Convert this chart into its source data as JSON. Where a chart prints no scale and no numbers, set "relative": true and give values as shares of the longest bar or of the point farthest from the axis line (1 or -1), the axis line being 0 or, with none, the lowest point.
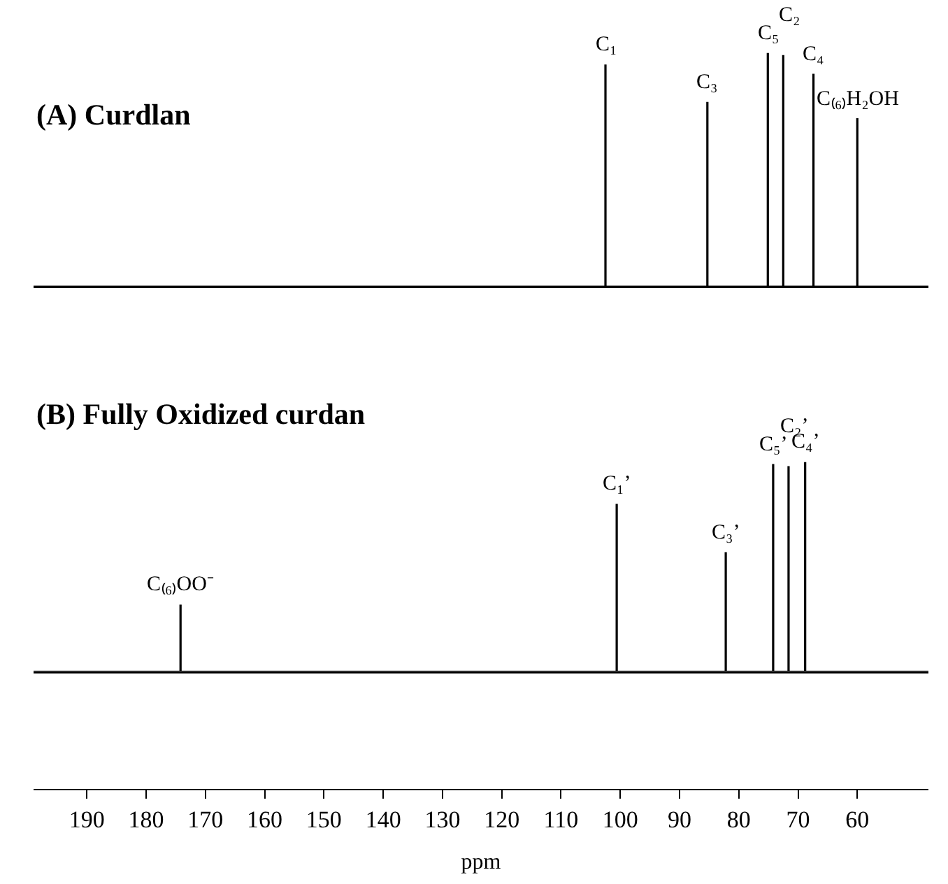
{
  "chart_data": [
    {
      "type": "line",
      "title": "(A) Curdlan",
      "relative": true,
      "tick_labels": false,
      "xlim": [
        199,
        48
      ],
      "series": [
        {
          "color": "#000000",
          "x": [
            199,
            102.5,
            102.5,
            102.5,
            85.3,
            85.3,
            85.3,
            75.1,
            75.1,
            75.1,
            72.5,
            72.5,
            72.5,
            67.4,
            67.4,
            67.4,
            60.0,
            60.0,
            60.0,
            48
          ],
          "values": [
            0,
            0,
            0.95,
            0,
            0,
            0.79,
            0,
            0,
            1,
            0,
            0,
            0.99,
            0,
            0,
            0.91,
            0,
            0,
            0.72,
            0,
            0
          ]
        }
      ],
      "annotations": [
        {
          "text": "C₁",
          "x": 102.5,
          "y": 0.95
        },
        {
          "text": "C₃",
          "x": 85.3,
          "y": 0.79
        },
        {
          "text": "C₅",
          "x": 75.1,
          "y": 1
        },
        {
          "text": "C₂",
          "x": 72.5,
          "y": 0.99
        },
        {
          "text": "C₄",
          "x": 67.4,
          "y": 0.91
        },
        {
          "text": "C₍₆₎H₂OH",
          "x": 60.0,
          "y": 0.72
        }
      ]
    },
    {
      "type": "line",
      "title": "(B) Fully Oxidized curdan",
      "relative": true,
      "xlabel": "ppm",
      "xlim": [
        199,
        48
      ],
      "xticks": [
        190,
        180,
        170,
        160,
        150,
        140,
        130,
        120,
        110,
        100,
        90,
        80,
        70,
        60
      ],
      "series": [
        {
          "color": "#000000",
          "x": [
            199,
            174.2,
            174.2,
            174.2,
            100.6,
            100.6,
            100.6,
            82.2,
            82.2,
            82.2,
            74.2,
            74.2,
            74.2,
            71.6,
            71.6,
            71.6,
            68.8,
            68.8,
            68.8,
            48
          ],
          "values": [
            0,
            0,
            0.32,
            0,
            0,
            0.8,
            0,
            0,
            0.57,
            0,
            0,
            0.99,
            0,
            0,
            0.98,
            0,
            0,
            1,
            0,
            0
          ]
        }
      ],
      "annotations": [
        {
          "text": "C₍₆₎OO⁻",
          "x": 174.2,
          "y": 0.32
        },
        {
          "text": "C₁’",
          "x": 100.6,
          "y": 0.8
        },
        {
          "text": "C₃’",
          "x": 82.2,
          "y": 0.57
        },
        {
          "text": "C₅’",
          "x": 74.2,
          "y": 0.99
        },
        {
          "text": "C₂’",
          "x": 71.6,
          "y": 0.98
        },
        {
          "text": "C₄’",
          "x": 68.8,
          "y": 1
        }
      ]
    }
  ]
}
